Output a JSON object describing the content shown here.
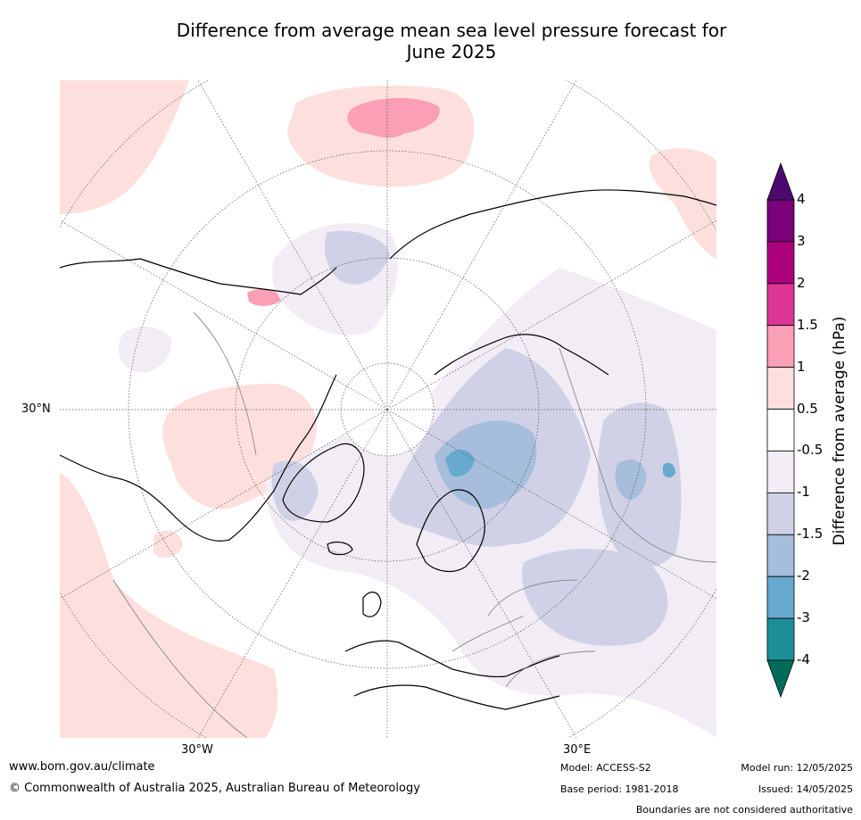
{
  "title_line1": "Difference from average mean sea level pressure forecast for",
  "title_line2": "June 2025",
  "map": {
    "projection": "north-polar-stereographic",
    "grid_labels": {
      "lat": "30°N",
      "lon_west": "30°W",
      "lon_east": "30°E"
    }
  },
  "colorbar": {
    "title": "Difference from average (hPa)",
    "tick_labels": [
      "4",
      "3",
      "2",
      "1.5",
      "1",
      "0.5",
      "-0.5",
      "-1",
      "-1.5",
      "-2",
      "-3",
      "-4"
    ],
    "bins": [
      {
        "range": "3 to 4",
        "color": "#7a0177"
      },
      {
        "range": "2 to 3",
        "color": "#ae017e"
      },
      {
        "range": "1.5 to 2",
        "color": "#dd3497"
      },
      {
        "range": "1 to 1.5",
        "color": "#fa9fb5"
      },
      {
        "range": "0.5 to 1",
        "color": "#fde0dd"
      },
      {
        "range": "-0.5 to 0.5",
        "color": "#ffffff"
      },
      {
        "range": "-1 to -0.5",
        "color": "#f2edf5"
      },
      {
        "range": "-1.5 to -1",
        "color": "#d0d1e6"
      },
      {
        "range": "-2 to -1.5",
        "color": "#a6bddb"
      },
      {
        "range": "-3 to -2",
        "color": "#67a9cf"
      },
      {
        "range": "-4 to -3",
        "color": "#1c9099"
      }
    ],
    "over_color": "#4d0a6e",
    "under_color": "#016c59"
  },
  "footer": {
    "website": "www.bom.gov.au/climate",
    "copyright": "© Commonwealth of Australia 2025, Australian Bureau of Meteorology",
    "model": "Model: ACCESS-S2",
    "base_period": "Base period: 1981-2018",
    "model_run": "Model run: 12/05/2025",
    "issued": "Issued: 14/05/2025",
    "disclaimer": "Boundaries are not considered authoritative"
  }
}
